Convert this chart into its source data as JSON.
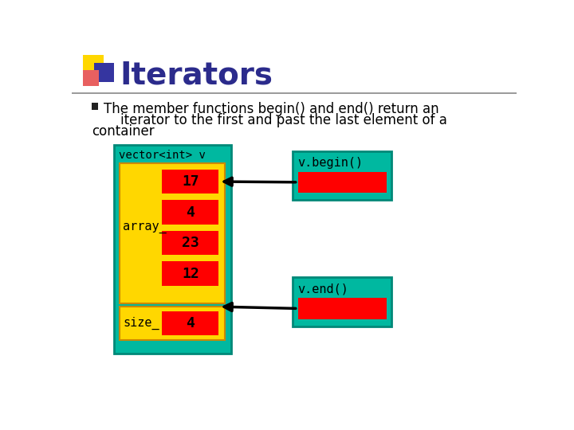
{
  "title": "Iterators",
  "title_color": "#2B2B8C",
  "title_fontsize": 28,
  "bullet_text_line1": "The member functions begin() and end() return an",
  "bullet_text_line2": "    iterator to the first and past the last element of a",
  "bullet_text_line3": "container",
  "bg_color": "#FFFFFF",
  "teal": "#00B8A0",
  "yellow": "#FFD700",
  "red": "#FF0000",
  "vector_label": "vector<int> v",
  "array_label": "array_",
  "size_label": "size_",
  "values": [
    "17",
    "4",
    "23",
    "12"
  ],
  "size_value": "4",
  "begin_label": "v.begin()",
  "end_label": "v.end()"
}
